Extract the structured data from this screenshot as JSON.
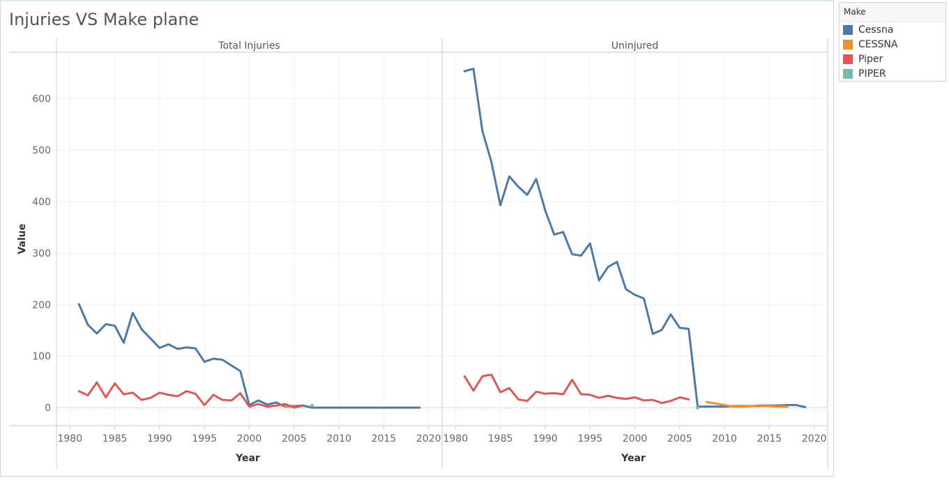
{
  "title": "Injuries VS Make plane",
  "legend": {
    "title": "Make",
    "items": [
      {
        "label": "Cessna",
        "color": "#4e79a7"
      },
      {
        "label": "CESSNA",
        "color": "#f28e2b"
      },
      {
        "label": "Piper",
        "color": "#e15759"
      },
      {
        "label": "PIPER",
        "color": "#76b7b2"
      }
    ]
  },
  "chart_data": {
    "type": "line",
    "ylabel": "Value",
    "xlabel": "Year",
    "ylim": [
      -35,
      690
    ],
    "xlim": [
      1978.5,
      2021.5
    ],
    "y_ticks": [
      0,
      100,
      200,
      300,
      400,
      500,
      600
    ],
    "x_ticks": [
      1980,
      1985,
      1990,
      1995,
      2000,
      2005,
      2010,
      2015,
      2020
    ],
    "grid": true,
    "legend_position": "right",
    "panels": [
      {
        "name": "Total Injuries",
        "series": [
          {
            "name": "Cessna",
            "color": "#4e79a7",
            "points": [
              [
                1981,
                201
              ],
              [
                1982,
                161
              ],
              [
                1983,
                144
              ],
              [
                1984,
                162
              ],
              [
                1985,
                159
              ],
              [
                1986,
                126
              ],
              [
                1987,
                184
              ],
              [
                1988,
                152
              ],
              [
                1989,
                134
              ],
              [
                1990,
                116
              ],
              [
                1991,
                123
              ],
              [
                1992,
                114
              ],
              [
                1993,
                117
              ],
              [
                1994,
                115
              ],
              [
                1995,
                89
              ],
              [
                1996,
                95
              ],
              [
                1997,
                93
              ],
              [
                1998,
                82
              ],
              [
                1999,
                71
              ],
              [
                2000,
                5
              ],
              [
                2001,
                14
              ],
              [
                2002,
                6
              ],
              [
                2003,
                10
              ],
              [
                2004,
                2
              ],
              [
                2005,
                3
              ],
              [
                2006,
                4
              ],
              [
                2007,
                0
              ],
              [
                2008,
                0
              ],
              [
                2009,
                0
              ],
              [
                2010,
                0
              ],
              [
                2011,
                0
              ],
              [
                2012,
                0
              ],
              [
                2013,
                0
              ],
              [
                2014,
                0
              ],
              [
                2015,
                0
              ],
              [
                2016,
                0
              ],
              [
                2017,
                0
              ],
              [
                2018,
                0
              ],
              [
                2019,
                0
              ]
            ]
          },
          {
            "name": "CESSNA",
            "color": "#f28e2b",
            "points": [
              [
                2004,
                2
              ],
              [
                2005,
                4
              ]
            ]
          },
          {
            "name": "Piper",
            "color": "#e15759",
            "points": [
              [
                1981,
                32
              ],
              [
                1982,
                24
              ],
              [
                1983,
                49
              ],
              [
                1984,
                20
              ],
              [
                1985,
                47
              ],
              [
                1986,
                26
              ],
              [
                1987,
                29
              ],
              [
                1988,
                15
              ],
              [
                1989,
                19
              ],
              [
                1990,
                29
              ],
              [
                1991,
                25
              ],
              [
                1992,
                22
              ],
              [
                1993,
                32
              ],
              [
                1994,
                27
              ],
              [
                1995,
                5
              ],
              [
                1996,
                25
              ],
              [
                1997,
                15
              ],
              [
                1998,
                14
              ],
              [
                1999,
                28
              ],
              [
                2000,
                2
              ],
              [
                2001,
                7
              ],
              [
                2002,
                2
              ],
              [
                2003,
                4
              ],
              [
                2004,
                7
              ],
              [
                2005,
                0
              ],
              [
                2006,
                4
              ]
            ]
          },
          {
            "name": "PIPER",
            "color": "#76b7b2",
            "points": [
              [
                2007,
                4
              ]
            ]
          }
        ]
      },
      {
        "name": "Uninjured",
        "series": [
          {
            "name": "Cessna",
            "color": "#4e79a7",
            "points": [
              [
                1981,
                653
              ],
              [
                1982,
                658
              ],
              [
                1983,
                537
              ],
              [
                1984,
                477
              ],
              [
                1985,
                393
              ],
              [
                1986,
                449
              ],
              [
                1987,
                429
              ],
              [
                1988,
                413
              ],
              [
                1989,
                444
              ],
              [
                1990,
                383
              ],
              [
                1991,
                336
              ],
              [
                1992,
                341
              ],
              [
                1993,
                298
              ],
              [
                1994,
                295
              ],
              [
                1995,
                319
              ],
              [
                1996,
                247
              ],
              [
                1997,
                273
              ],
              [
                1998,
                283
              ],
              [
                1999,
                230
              ],
              [
                2000,
                219
              ],
              [
                2001,
                212
              ],
              [
                2002,
                143
              ],
              [
                2003,
                151
              ],
              [
                2004,
                181
              ],
              [
                2005,
                155
              ],
              [
                2006,
                153
              ],
              [
                2007,
                2
              ],
              [
                2008,
                2
              ],
              [
                2009,
                2
              ],
              [
                2010,
                2
              ],
              [
                2011,
                3
              ],
              [
                2012,
                3
              ],
              [
                2013,
                3
              ],
              [
                2014,
                4
              ],
              [
                2015,
                4
              ],
              [
                2016,
                4
              ],
              [
                2017,
                5
              ],
              [
                2018,
                5
              ],
              [
                2019,
                1
              ]
            ]
          },
          {
            "name": "CESSNA",
            "color": "#f28e2b",
            "points": [
              [
                2008,
                11
              ],
              [
                2009,
                8
              ],
              [
                2010,
                5
              ],
              [
                2011,
                2
              ],
              [
                2012,
                2
              ],
              [
                2013,
                3
              ],
              [
                2014,
                3
              ],
              [
                2015,
                3
              ],
              [
                2016,
                2
              ],
              [
                2017,
                2
              ]
            ]
          },
          {
            "name": "Piper",
            "color": "#e15759",
            "points": [
              [
                1981,
                61
              ],
              [
                1982,
                33
              ],
              [
                1983,
                61
              ],
              [
                1984,
                64
              ],
              [
                1985,
                30
              ],
              [
                1986,
                38
              ],
              [
                1987,
                16
              ],
              [
                1988,
                13
              ],
              [
                1989,
                31
              ],
              [
                1990,
                27
              ],
              [
                1991,
                28
              ],
              [
                1992,
                26
              ],
              [
                1993,
                54
              ],
              [
                1994,
                26
              ],
              [
                1995,
                25
              ],
              [
                1996,
                19
              ],
              [
                1997,
                23
              ],
              [
                1998,
                19
              ],
              [
                1999,
                17
              ],
              [
                2000,
                20
              ],
              [
                2001,
                14
              ],
              [
                2002,
                15
              ],
              [
                2003,
                9
              ],
              [
                2004,
                13
              ],
              [
                2005,
                20
              ],
              [
                2006,
                16
              ]
            ]
          },
          {
            "name": "PIPER",
            "color": "#76b7b2",
            "points": [
              [
                2007,
                0
              ]
            ]
          }
        ]
      }
    ]
  }
}
